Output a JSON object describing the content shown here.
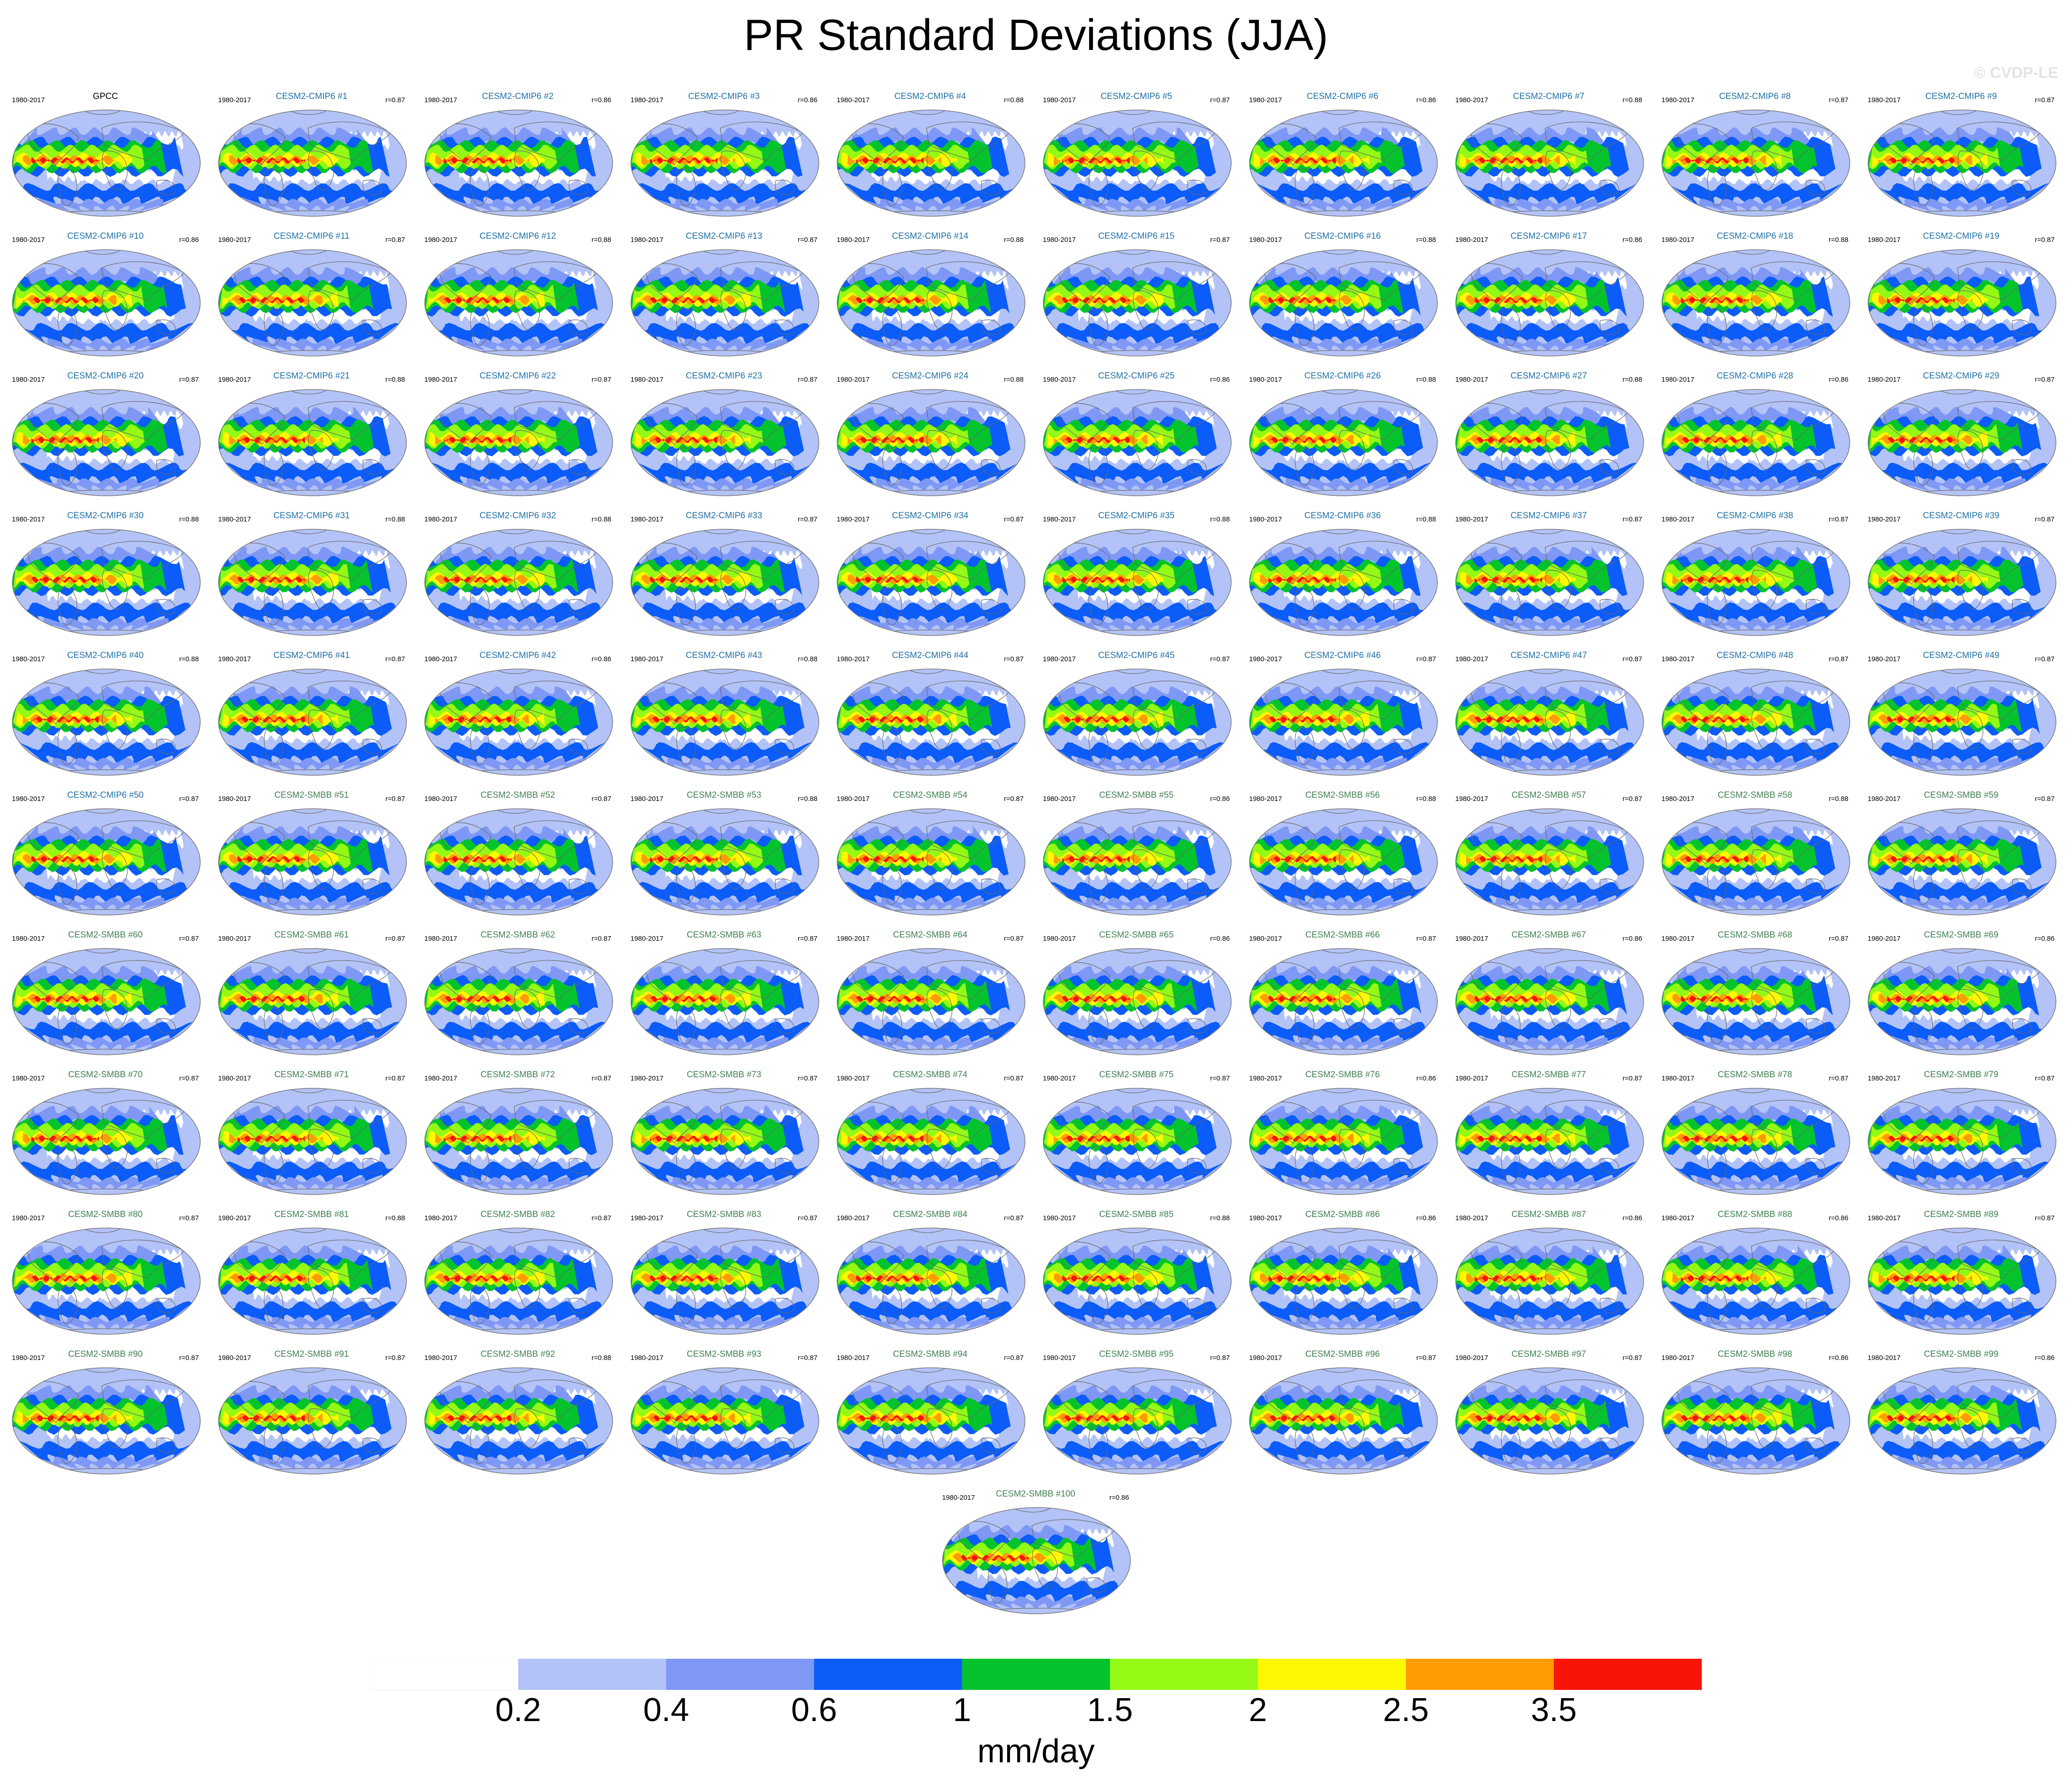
{
  "title": "PR Standard Deviations (JJA)",
  "watermark": "© CVDP-LE",
  "colors": {
    "cmip_label": "#1f6fa6",
    "smbb_label": "#3f7f50",
    "land_outline": "#666666",
    "map_border": "#777777"
  },
  "chart_data": {
    "type": "heatmap",
    "title": "PR Standard Deviations (JJA)",
    "variable": "PR",
    "season": "JJA",
    "units": "mm/day",
    "period": "1980-2017",
    "colorbar": {
      "levels": [
        "0.2",
        "0.4",
        "0.6",
        "1",
        "1.5",
        "2",
        "2.5",
        "3.5"
      ],
      "colors": [
        "#ffffff",
        "#b3c3f7",
        "#7f98f5",
        "#0b5cf8",
        "#05c32c",
        "#94f914",
        "#fef902",
        "#fe9c03",
        "#f81408"
      ]
    },
    "panels": [
      {
        "label": "GPCC",
        "period": "1980-2017",
        "r": ""
      },
      {
        "label": "CESM2-CMIP6 #1",
        "period": "1980-2017",
        "r": "r=0.87"
      },
      {
        "label": "CESM2-CMIP6 #2",
        "period": "1980-2017",
        "r": "r=0.86"
      },
      {
        "label": "CESM2-CMIP6 #3",
        "period": "1980-2017",
        "r": "r=0.86"
      },
      {
        "label": "CESM2-CMIP6 #4",
        "period": "1980-2017",
        "r": "r=0.88"
      },
      {
        "label": "CESM2-CMIP6 #5",
        "period": "1980-2017",
        "r": "r=0.87"
      },
      {
        "label": "CESM2-CMIP6 #6",
        "period": "1980-2017",
        "r": "r=0.86"
      },
      {
        "label": "CESM2-CMIP6 #7",
        "period": "1980-2017",
        "r": "r=0.88"
      },
      {
        "label": "CESM2-CMIP6 #8",
        "period": "1980-2017",
        "r": "r=0.87"
      },
      {
        "label": "CESM2-CMIP6 #9",
        "period": "1980-2017",
        "r": "r=0.87"
      },
      {
        "label": "CESM2-CMIP6 #10",
        "period": "1980-2017",
        "r": "r=0.86"
      },
      {
        "label": "CESM2-CMIP6 #11",
        "period": "1980-2017",
        "r": "r=0.87"
      },
      {
        "label": "CESM2-CMIP6 #12",
        "period": "1980-2017",
        "r": "r=0.88"
      },
      {
        "label": "CESM2-CMIP6 #13",
        "period": "1980-2017",
        "r": "r=0.87"
      },
      {
        "label": "CESM2-CMIP6 #14",
        "period": "1980-2017",
        "r": "r=0.88"
      },
      {
        "label": "CESM2-CMIP6 #15",
        "period": "1980-2017",
        "r": "r=0.87"
      },
      {
        "label": "CESM2-CMIP6 #16",
        "period": "1980-2017",
        "r": "r=0.88"
      },
      {
        "label": "CESM2-CMIP6 #17",
        "period": "1980-2017",
        "r": "r=0.86"
      },
      {
        "label": "CESM2-CMIP6 #18",
        "period": "1980-2017",
        "r": "r=0.88"
      },
      {
        "label": "CESM2-CMIP6 #19",
        "period": "1980-2017",
        "r": "r=0.87"
      },
      {
        "label": "CESM2-CMIP6 #20",
        "period": "1980-2017",
        "r": "r=0.87"
      },
      {
        "label": "CESM2-CMIP6 #21",
        "period": "1980-2017",
        "r": "r=0.88"
      },
      {
        "label": "CESM2-CMIP6 #22",
        "period": "1980-2017",
        "r": "r=0.87"
      },
      {
        "label": "CESM2-CMIP6 #23",
        "period": "1980-2017",
        "r": "r=0.87"
      },
      {
        "label": "CESM2-CMIP6 #24",
        "period": "1980-2017",
        "r": "r=0.88"
      },
      {
        "label": "CESM2-CMIP6 #25",
        "period": "1980-2017",
        "r": "r=0.86"
      },
      {
        "label": "CESM2-CMIP6 #26",
        "period": "1980-2017",
        "r": "r=0.88"
      },
      {
        "label": "CESM2-CMIP6 #27",
        "period": "1980-2017",
        "r": "r=0.88"
      },
      {
        "label": "CESM2-CMIP6 #28",
        "period": "1980-2017",
        "r": "r=0.86"
      },
      {
        "label": "CESM2-CMIP6 #29",
        "period": "1980-2017",
        "r": "r=0.87"
      },
      {
        "label": "CESM2-CMIP6 #30",
        "period": "1980-2017",
        "r": "r=0.88"
      },
      {
        "label": "CESM2-CMIP6 #31",
        "period": "1980-2017",
        "r": "r=0.88"
      },
      {
        "label": "CESM2-CMIP6 #32",
        "period": "1980-2017",
        "r": "r=0.88"
      },
      {
        "label": "CESM2-CMIP6 #33",
        "period": "1980-2017",
        "r": "r=0.87"
      },
      {
        "label": "CESM2-CMIP6 #34",
        "period": "1980-2017",
        "r": "r=0.87"
      },
      {
        "label": "CESM2-CMIP6 #35",
        "period": "1980-2017",
        "r": "r=0.88"
      },
      {
        "label": "CESM2-CMIP6 #36",
        "period": "1980-2017",
        "r": "r=0.88"
      },
      {
        "label": "CESM2-CMIP6 #37",
        "period": "1980-2017",
        "r": "r=0.87"
      },
      {
        "label": "CESM2-CMIP6 #38",
        "period": "1980-2017",
        "r": "r=0.87"
      },
      {
        "label": "CESM2-CMIP6 #39",
        "period": "1980-2017",
        "r": "r=0.87"
      },
      {
        "label": "CESM2-CMIP6 #40",
        "period": "1980-2017",
        "r": "r=0.88"
      },
      {
        "label": "CESM2-CMIP6 #41",
        "period": "1980-2017",
        "r": "r=0.87"
      },
      {
        "label": "CESM2-CMIP6 #42",
        "period": "1980-2017",
        "r": "r=0.86"
      },
      {
        "label": "CESM2-CMIP6 #43",
        "period": "1980-2017",
        "r": "r=0.88"
      },
      {
        "label": "CESM2-CMIP6 #44",
        "period": "1980-2017",
        "r": "r=0.87"
      },
      {
        "label": "CESM2-CMIP6 #45",
        "period": "1980-2017",
        "r": "r=0.87"
      },
      {
        "label": "CESM2-CMIP6 #46",
        "period": "1980-2017",
        "r": "r=0.87"
      },
      {
        "label": "CESM2-CMIP6 #47",
        "period": "1980-2017",
        "r": "r=0.87"
      },
      {
        "label": "CESM2-CMIP6 #48",
        "period": "1980-2017",
        "r": "r=0.87"
      },
      {
        "label": "CESM2-CMIP6 #49",
        "period": "1980-2017",
        "r": "r=0.87"
      },
      {
        "label": "CESM2-CMIP6 #50",
        "period": "1980-2017",
        "r": "r=0.87"
      },
      {
        "label": "CESM2-SMBB #51",
        "period": "1980-2017",
        "r": "r=0.87"
      },
      {
        "label": "CESM2-SMBB #52",
        "period": "1980-2017",
        "r": "r=0.87"
      },
      {
        "label": "CESM2-SMBB #53",
        "period": "1980-2017",
        "r": "r=0.88"
      },
      {
        "label": "CESM2-SMBB #54",
        "period": "1980-2017",
        "r": "r=0.87"
      },
      {
        "label": "CESM2-SMBB #55",
        "period": "1980-2017",
        "r": "r=0.86"
      },
      {
        "label": "CESM2-SMBB #56",
        "period": "1980-2017",
        "r": "r=0.88"
      },
      {
        "label": "CESM2-SMBB #57",
        "period": "1980-2017",
        "r": "r=0.87"
      },
      {
        "label": "CESM2-SMBB #58",
        "period": "1980-2017",
        "r": "r=0.88"
      },
      {
        "label": "CESM2-SMBB #59",
        "period": "1980-2017",
        "r": "r=0.87"
      },
      {
        "label": "CESM2-SMBB #60",
        "period": "1980-2017",
        "r": "r=0.87"
      },
      {
        "label": "CESM2-SMBB #61",
        "period": "1980-2017",
        "r": "r=0.87"
      },
      {
        "label": "CESM2-SMBB #62",
        "period": "1980-2017",
        "r": "r=0.87"
      },
      {
        "label": "CESM2-SMBB #63",
        "period": "1980-2017",
        "r": "r=0.87"
      },
      {
        "label": "CESM2-SMBB #64",
        "period": "1980-2017",
        "r": "r=0.87"
      },
      {
        "label": "CESM2-SMBB #65",
        "period": "1980-2017",
        "r": "r=0.86"
      },
      {
        "label": "CESM2-SMBB #66",
        "period": "1980-2017",
        "r": "r=0.87"
      },
      {
        "label": "CESM2-SMBB #67",
        "period": "1980-2017",
        "r": "r=0.86"
      },
      {
        "label": "CESM2-SMBB #68",
        "period": "1980-2017",
        "r": "r=0.87"
      },
      {
        "label": "CESM2-SMBB #69",
        "period": "1980-2017",
        "r": "r=0.86"
      },
      {
        "label": "CESM2-SMBB #70",
        "period": "1980-2017",
        "r": "r=0.87"
      },
      {
        "label": "CESM2-SMBB #71",
        "period": "1980-2017",
        "r": "r=0.87"
      },
      {
        "label": "CESM2-SMBB #72",
        "period": "1980-2017",
        "r": "r=0.87"
      },
      {
        "label": "CESM2-SMBB #73",
        "period": "1980-2017",
        "r": "r=0.87"
      },
      {
        "label": "CESM2-SMBB #74",
        "period": "1980-2017",
        "r": "r=0.87"
      },
      {
        "label": "CESM2-SMBB #75",
        "period": "1980-2017",
        "r": "r=0.87"
      },
      {
        "label": "CESM2-SMBB #76",
        "period": "1980-2017",
        "r": "r=0.86"
      },
      {
        "label": "CESM2-SMBB #77",
        "period": "1980-2017",
        "r": "r=0.87"
      },
      {
        "label": "CESM2-SMBB #78",
        "period": "1980-2017",
        "r": "r=0.87"
      },
      {
        "label": "CESM2-SMBB #79",
        "period": "1980-2017",
        "r": "r=0.87"
      },
      {
        "label": "CESM2-SMBB #80",
        "period": "1980-2017",
        "r": "r=0.87"
      },
      {
        "label": "CESM2-SMBB #81",
        "period": "1980-2017",
        "r": "r=0.88"
      },
      {
        "label": "CESM2-SMBB #82",
        "period": "1980-2017",
        "r": "r=0.87"
      },
      {
        "label": "CESM2-SMBB #83",
        "period": "1980-2017",
        "r": "r=0.87"
      },
      {
        "label": "CESM2-SMBB #84",
        "period": "1980-2017",
        "r": "r=0.87"
      },
      {
        "label": "CESM2-SMBB #85",
        "period": "1980-2017",
        "r": "r=0.88"
      },
      {
        "label": "CESM2-SMBB #86",
        "period": "1980-2017",
        "r": "r=0.86"
      },
      {
        "label": "CESM2-SMBB #87",
        "period": "1980-2017",
        "r": "r=0.86"
      },
      {
        "label": "CESM2-SMBB #88",
        "period": "1980-2017",
        "r": "r=0.86"
      },
      {
        "label": "CESM2-SMBB #89",
        "period": "1980-2017",
        "r": "r=0.87"
      },
      {
        "label": "CESM2-SMBB #90",
        "period": "1980-2017",
        "r": "r=0.87"
      },
      {
        "label": "CESM2-SMBB #91",
        "period": "1980-2017",
        "r": "r=0.87"
      },
      {
        "label": "CESM2-SMBB #92",
        "period": "1980-2017",
        "r": "r=0.88"
      },
      {
        "label": "CESM2-SMBB #93",
        "period": "1980-2017",
        "r": "r=0.87"
      },
      {
        "label": "CESM2-SMBB #94",
        "period": "1980-2017",
        "r": "r=0.87"
      },
      {
        "label": "CESM2-SMBB #95",
        "period": "1980-2017",
        "r": "r=0.87"
      },
      {
        "label": "CESM2-SMBB #96",
        "period": "1980-2017",
        "r": "r=0.87"
      },
      {
        "label": "CESM2-SMBB #97",
        "period": "1980-2017",
        "r": "r=0.87"
      },
      {
        "label": "CESM2-SMBB #98",
        "period": "1980-2017",
        "r": "r=0.86"
      },
      {
        "label": "CESM2-SMBB #99",
        "period": "1980-2017",
        "r": "r=0.86"
      },
      {
        "label": "CESM2-SMBB #100",
        "period": "1980-2017",
        "r": "r=0.86"
      }
    ]
  }
}
